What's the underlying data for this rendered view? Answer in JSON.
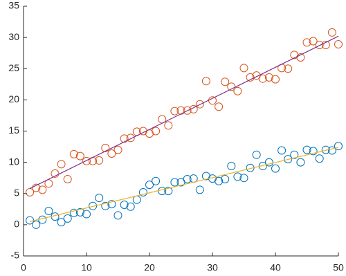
{
  "chart_data": {
    "type": "scatter",
    "x": [
      1,
      2,
      3,
      4,
      5,
      6,
      7,
      8,
      9,
      10,
      11,
      12,
      13,
      14,
      15,
      16,
      17,
      18,
      19,
      20,
      21,
      22,
      23,
      24,
      25,
      26,
      27,
      28,
      29,
      30,
      31,
      32,
      33,
      34,
      35,
      36,
      37,
      38,
      39,
      40,
      41,
      42,
      43,
      44,
      45,
      46,
      47,
      48,
      49,
      50
    ],
    "series": [
      {
        "color": "#0072bd",
        "values": [
          0.7,
          0,
          0.8,
          2.2,
          1.3,
          0.4,
          1,
          1.9,
          2,
          1.7,
          3,
          4.3,
          3,
          3.3,
          1.5,
          3.2,
          2.9,
          4,
          5.2,
          6.4,
          7,
          5.4,
          5.4,
          6.8,
          6.8,
          7.3,
          7.4,
          5.6,
          7.8,
          7.4,
          7,
          7.3,
          9.4,
          7.7,
          7.5,
          9.1,
          11.2,
          9.4,
          10,
          9,
          11.9,
          10.5,
          11.2,
          10,
          12,
          11.8,
          10.6,
          12,
          11.9,
          12.6
        ]
      },
      {
        "color": "#d95319",
        "values": [
          5.2,
          5.9,
          5.6,
          6.6,
          8.2,
          9.7,
          7.3,
          11.3,
          11,
          10.2,
          10.2,
          10.3,
          12.3,
          11.4,
          12,
          13.8,
          13.9,
          14.9,
          15,
          14.6,
          15,
          16.9,
          15.9,
          18.2,
          18.3,
          18.3,
          18.5,
          19.3,
          23,
          19.9,
          18.9,
          22.9,
          22.1,
          21.4,
          25.1,
          23.6,
          23.9,
          23.4,
          23.6,
          23.3,
          25.1,
          25,
          27.2,
          26.8,
          29.2,
          29.4,
          28.8,
          28.8,
          30.8,
          28.9
        ]
      }
    ],
    "fits": [
      {
        "color": "#edb120",
        "x": [
          1,
          50
        ],
        "values": [
          0.5,
          12.4
        ]
      },
      {
        "color": "#7e2f8e",
        "x": [
          1,
          50
        ],
        "values": [
          5.8,
          30.2
        ]
      }
    ],
    "xlim": [
      0,
      50
    ],
    "xticks": [
      0,
      10,
      20,
      30,
      40,
      50
    ],
    "ylim": [
      -5,
      35
    ],
    "yticks": [
      -5,
      0,
      5,
      10,
      15,
      20,
      25,
      30,
      35
    ]
  }
}
